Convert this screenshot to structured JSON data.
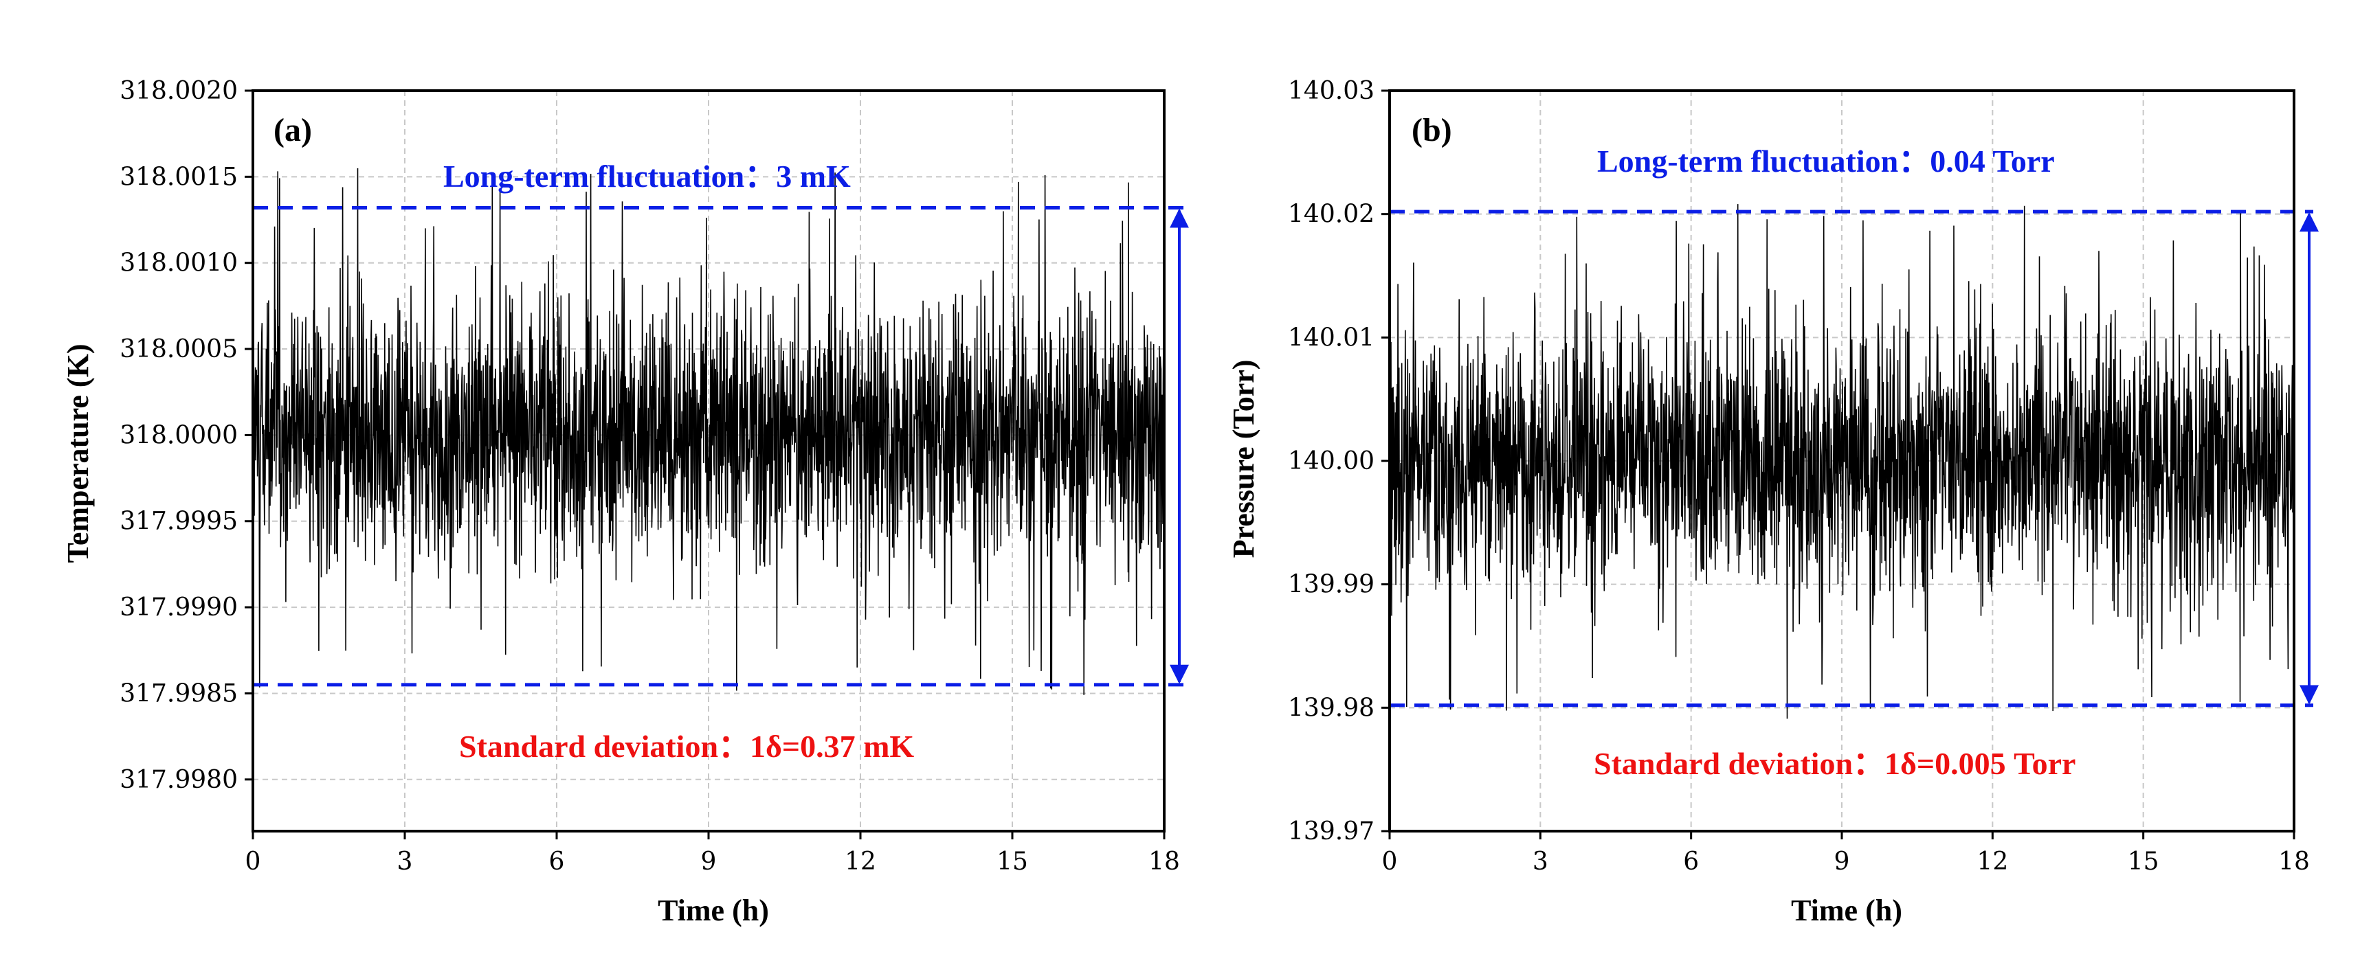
{
  "colors": {
    "trace": "#000000",
    "grid": "#c8c8c8",
    "bound_line": "#0b1ee6",
    "fluctuation_text": "#0b1ee6",
    "deviation_text": "#ee1111"
  },
  "chart_data": [
    {
      "type": "line",
      "panel_label": "(a)",
      "xlabel": "Time (h)",
      "ylabel": "Temperature (K)",
      "xlim": [
        0,
        18
      ],
      "ylim": [
        317.9977,
        318.002
      ],
      "x_ticks": [
        0,
        3,
        6,
        9,
        12,
        15,
        18
      ],
      "x_tick_labels": [
        "0",
        "3",
        "6",
        "9",
        "12",
        "15",
        "18"
      ],
      "y_ticks": [
        317.998,
        317.9985,
        317.999,
        317.9995,
        318.0,
        318.0005,
        318.001,
        318.0015,
        318.002
      ],
      "y_tick_labels": [
        "317.9980",
        "317.9985",
        "317.9990",
        "317.9995",
        "318.0000",
        "318.0005",
        "318.0010",
        "318.0015",
        "318.0020"
      ],
      "grid": true,
      "series": [
        {
          "name": "Temperature",
          "description": "noise trace around mean",
          "mean": 318.0,
          "std_dev": 0.00037,
          "upper_bound": 318.00132,
          "lower_bound": 317.99855
        }
      ],
      "fluctuation_label": "Long-term fluctuation：3 mK",
      "deviation_label": "Standard deviation：1δ=0.37 mK"
    },
    {
      "type": "line",
      "panel_label": "(b)",
      "xlabel": "Time (h)",
      "ylabel": "Pressure (Torr)",
      "xlim": [
        0,
        18
      ],
      "ylim": [
        139.97,
        140.03
      ],
      "x_ticks": [
        0,
        3,
        6,
        9,
        12,
        15,
        18
      ],
      "x_tick_labels": [
        "0",
        "3",
        "6",
        "9",
        "12",
        "15",
        "18"
      ],
      "y_ticks": [
        139.97,
        139.98,
        139.99,
        140.0,
        140.01,
        140.02,
        140.03
      ],
      "y_tick_labels": [
        "139.97",
        "139.98",
        "139.99",
        "140.00",
        "140.01",
        "140.02",
        "140.03"
      ],
      "grid": true,
      "series": [
        {
          "name": "Pressure",
          "description": "noise trace around mean",
          "mean": 140.0,
          "std_dev": 0.005,
          "upper_bound": 140.0202,
          "lower_bound": 139.9802
        }
      ],
      "fluctuation_label": "Long-term fluctuation：0.04 Torr",
      "deviation_label": "Standard deviation：1δ=0.005 Torr"
    }
  ]
}
